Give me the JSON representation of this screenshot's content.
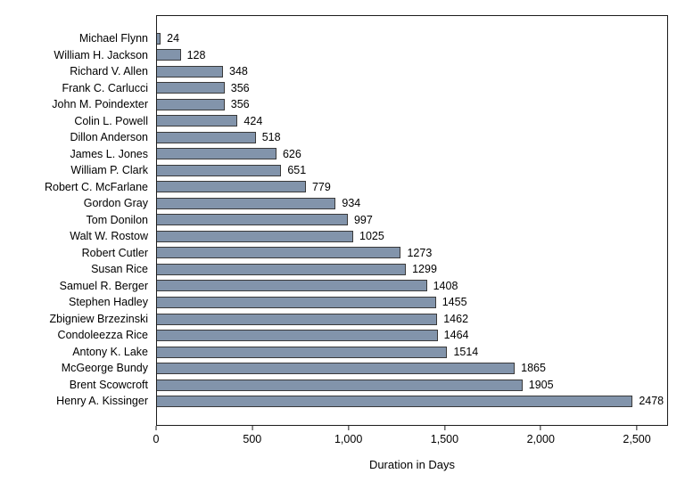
{
  "chart_data": {
    "type": "bar",
    "orientation": "horizontal",
    "title": "",
    "xlabel": "Duration in Days",
    "ylabel": "",
    "categories": [
      "Michael Flynn",
      "William H. Jackson",
      "Richard V. Allen",
      "Frank C. Carlucci",
      "John M. Poindexter",
      "Colin L. Powell",
      "Dillon Anderson",
      "James L. Jones",
      "William P. Clark",
      "Robert C. McFarlane",
      "Gordon Gray",
      "Tom Donilon",
      "Walt W. Rostow",
      "Robert Cutler",
      "Susan Rice",
      "Samuel R. Berger",
      "Stephen Hadley",
      "Zbigniew Brzezinski",
      "Condoleezza Rice",
      "Antony K. Lake",
      "McGeorge Bundy",
      "Brent Scowcroft",
      "Henry A. Kissinger"
    ],
    "values": [
      24,
      128,
      348,
      356,
      356,
      424,
      518,
      626,
      651,
      779,
      934,
      997,
      1025,
      1273,
      1299,
      1408,
      1455,
      1462,
      1464,
      1514,
      1865,
      1905,
      2478
    ],
    "value_labels": [
      "24",
      "128",
      "348",
      "356",
      "356",
      "424",
      "518",
      "626",
      "651",
      "779",
      "934",
      "997",
      "1025",
      "1273",
      "1299",
      "1408",
      "1455",
      "1462",
      "1464",
      "1514",
      "1865",
      "1905",
      "2478"
    ],
    "xlim": [
      0,
      2662
    ],
    "xticks": [
      0,
      500,
      1000,
      1500,
      2000,
      2500
    ],
    "xtick_labels": [
      "0",
      "500",
      "1,000",
      "1,500",
      "2,000",
      "2,500"
    ],
    "grid": false,
    "legend": null,
    "bar_color": "#8294ab",
    "bar_border_color": "#3a3a3a",
    "frame_color": "#1c1c1c"
  }
}
